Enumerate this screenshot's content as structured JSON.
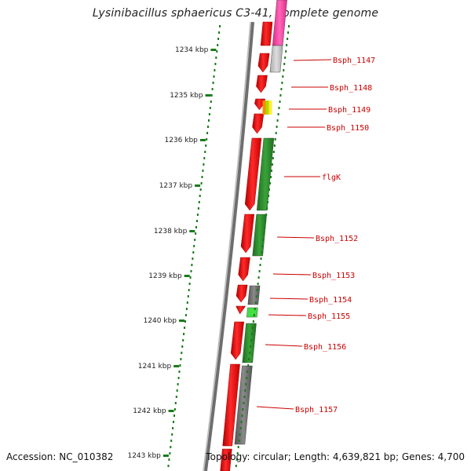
{
  "title": "Lysinibacillus sphaericus C3-41, complete genome",
  "accession": "Accession: NC_010382",
  "summary": "Topology: circular; Length: 4,639,821 bp; Genes: 4,700",
  "ruler": {
    "labels": [
      "1234 kbp",
      "1235 kbp",
      "1236 kbp",
      "1237 kbp",
      "1238 kbp",
      "1239 kbp",
      "1240 kbp",
      "1241 kbp",
      "1242 kbp",
      "1243 kbp"
    ]
  },
  "genes": [
    {
      "label": "Bsph_1147",
      "color": "#ff55aa"
    },
    {
      "label": "Bsph_1148",
      "color": "#c8c8c8"
    },
    {
      "label": "Bsph_1149",
      "color": "#ff8800"
    },
    {
      "label": "Bsph_1150",
      "color": "#ffffff"
    },
    {
      "label": "flgK",
      "color": "#2e8b2e"
    },
    {
      "label": "Bsph_1152",
      "color": "#2e8b2e"
    },
    {
      "label": "Bsph_1153",
      "color": "#ffffff"
    },
    {
      "label": "Bsph_1154",
      "color": "#6a6a6a"
    },
    {
      "label": "Bsph_1155",
      "color": "#44dd44"
    },
    {
      "label": "Bsph_1156",
      "color": "#2e8b2e"
    },
    {
      "label": "Bsph_1157",
      "color": "#6a6a6a"
    }
  ],
  "colors": {
    "red_strand": "#ee1111",
    "ruler_tick": "#1a7a1a",
    "label_color": "#cc0000",
    "backbone": "#777777"
  }
}
